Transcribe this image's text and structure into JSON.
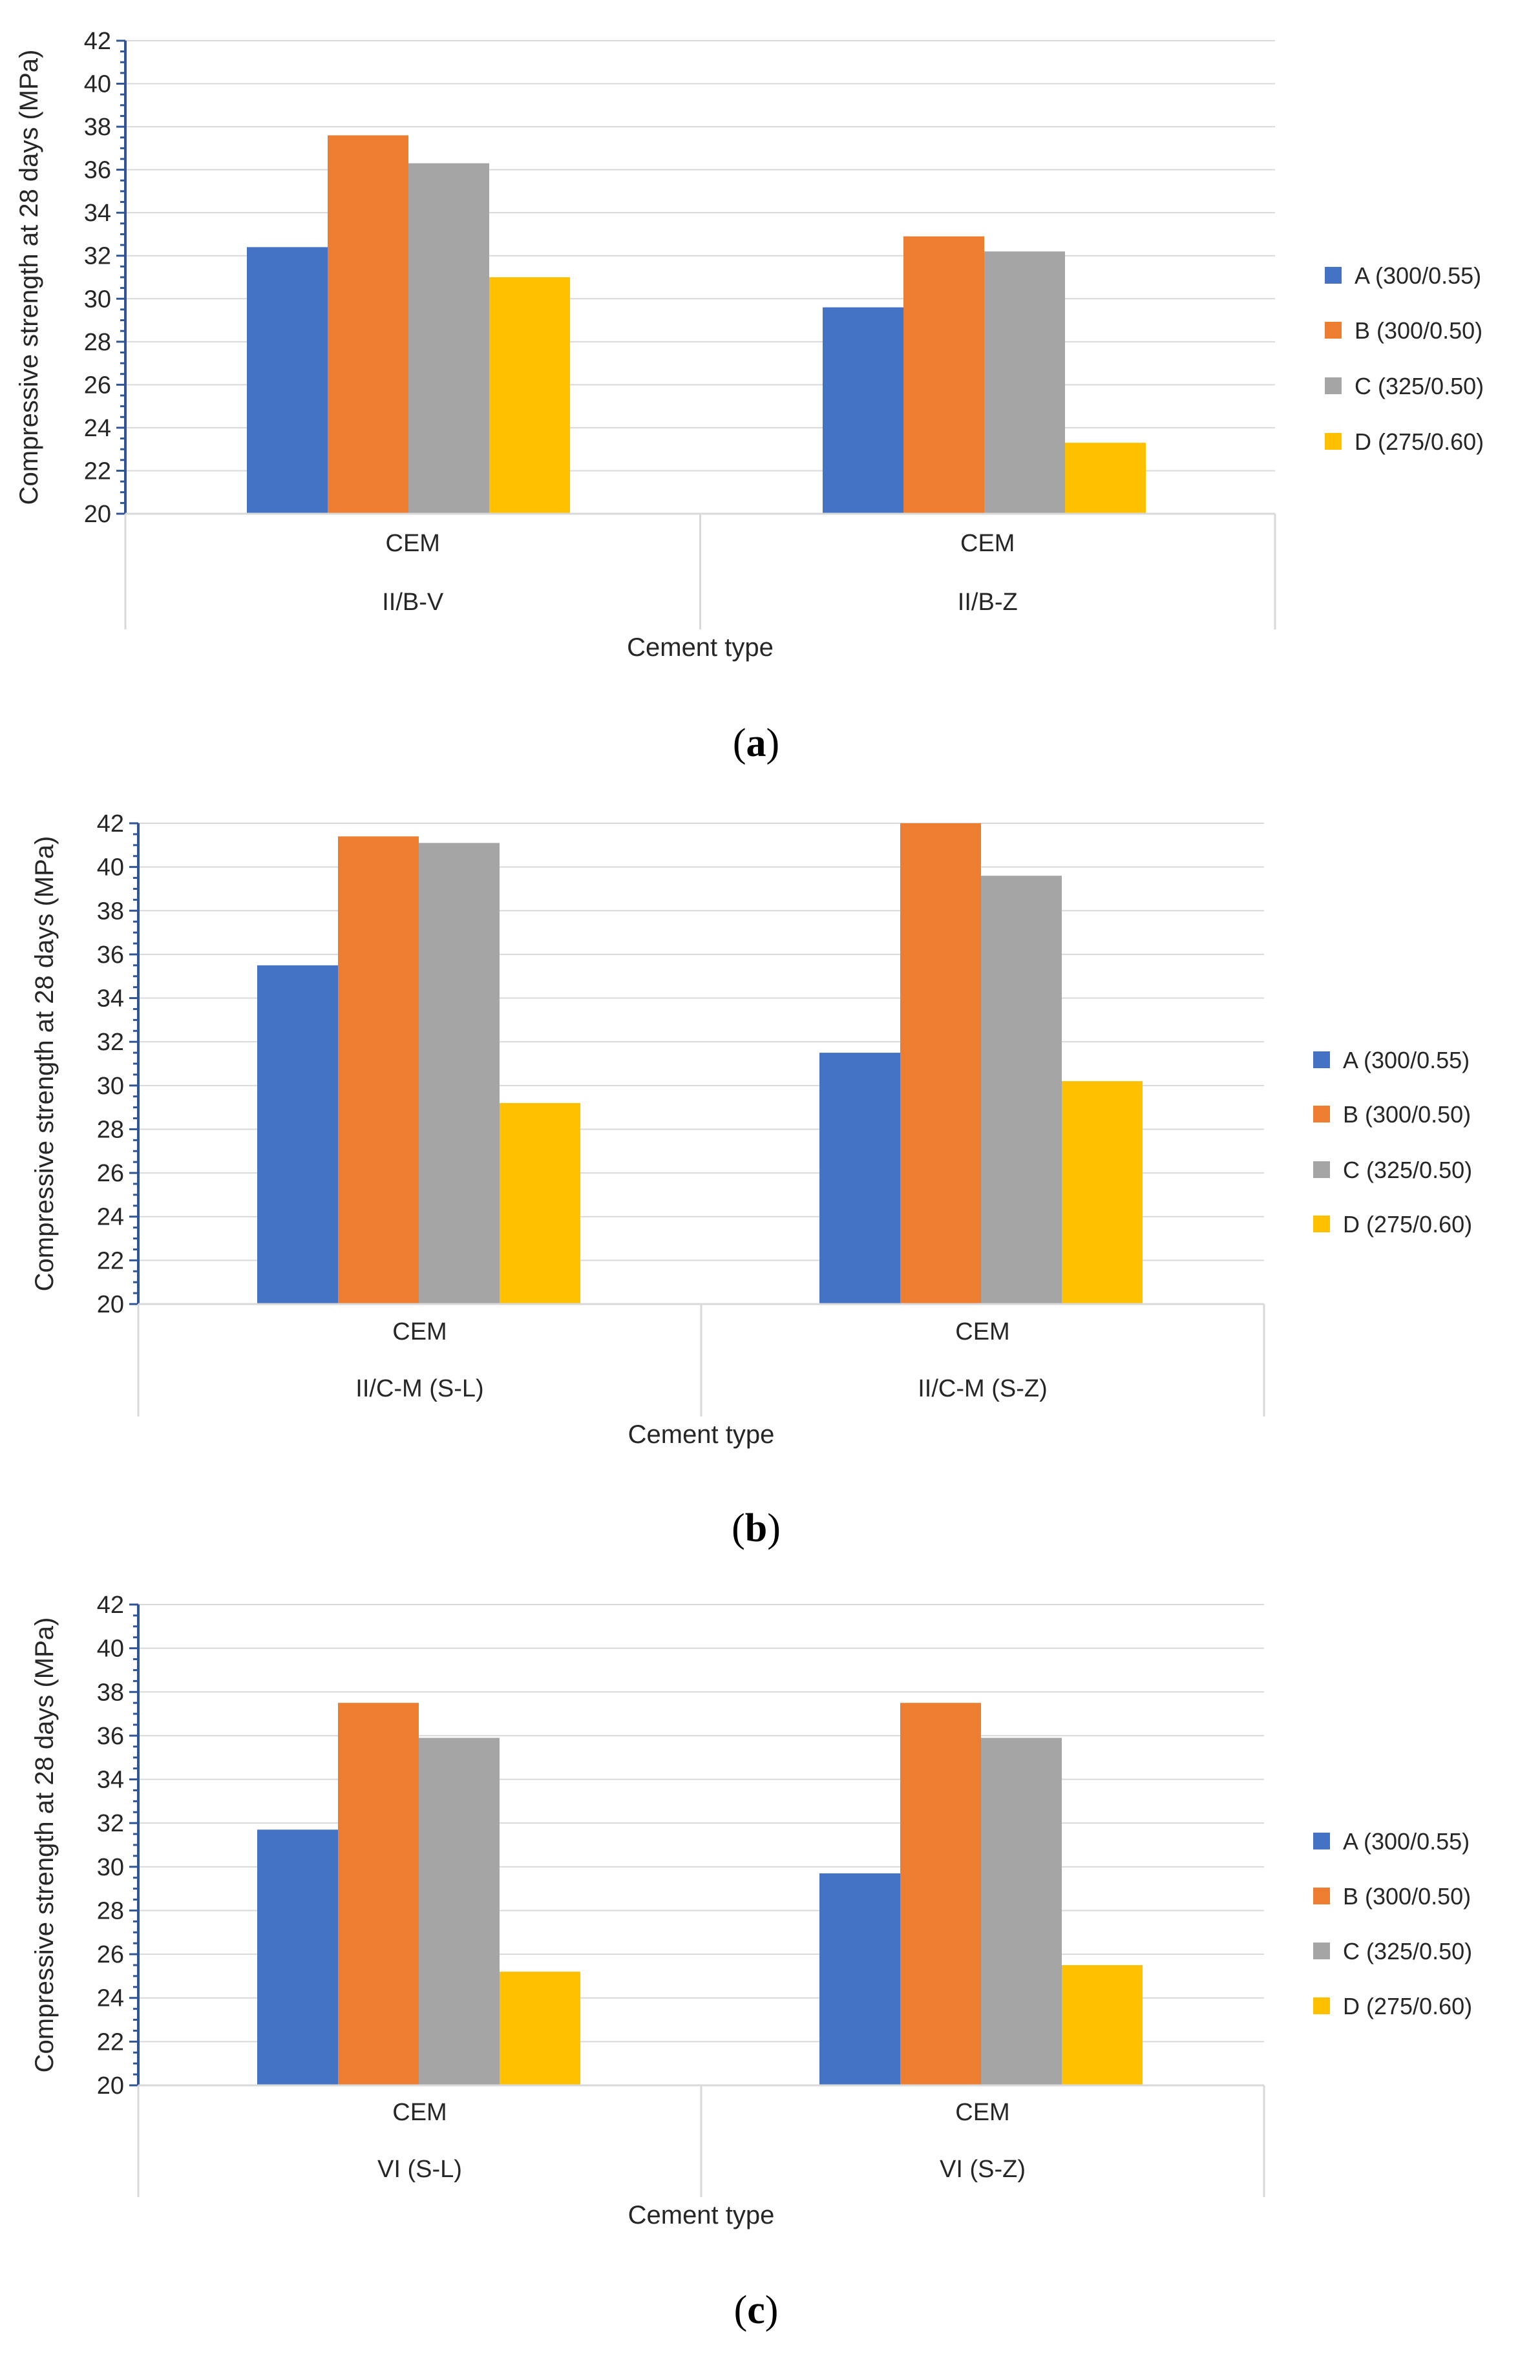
{
  "colors": {
    "A": "#4472C4",
    "B": "#ED7D31",
    "C": "#A5A5A5",
    "D": "#FFC000",
    "axis": "#2F5597",
    "grid": "#D9D9D9"
  },
  "chart_data": [
    {
      "type": "bar",
      "panel": {
        "open": "(",
        "letter": "a",
        "close": ")"
      },
      "ylabel": "Compressive strength at 28 days (MPa)",
      "xlabel": "Cement type",
      "ylim": [
        20,
        42
      ],
      "yticks": [
        "20",
        "22",
        "24",
        "26",
        "28",
        "30",
        "32",
        "34",
        "36",
        "38",
        "40",
        "42"
      ],
      "categories": [
        {
          "line1": "CEM",
          "line2": "II/B-V"
        },
        {
          "line1": "CEM",
          "line2": "II/B-Z"
        }
      ],
      "series": [
        {
          "key": "A",
          "name": "A (300/0.55)",
          "values": [
            32.4,
            29.6
          ]
        },
        {
          "key": "B",
          "name": "B (300/0.50)",
          "values": [
            37.6,
            32.9
          ]
        },
        {
          "key": "C",
          "name": "C (325/0.50)",
          "values": [
            36.3,
            32.2
          ]
        },
        {
          "key": "D",
          "name": "D (275/0.60)",
          "values": [
            31.0,
            23.3
          ]
        }
      ],
      "legend": "right",
      "grid": true
    },
    {
      "type": "bar",
      "panel": {
        "open": "(",
        "letter": "b",
        "close": ")"
      },
      "ylabel": "Compressive strength at 28 days (MPa)",
      "xlabel": "Cement type",
      "ylim": [
        20,
        42
      ],
      "yticks": [
        "20",
        "22",
        "24",
        "26",
        "28",
        "30",
        "32",
        "34",
        "36",
        "38",
        "40",
        "42"
      ],
      "categories": [
        {
          "line1": "CEM",
          "line2": "II/C-M (S-L)"
        },
        {
          "line1": "CEM",
          "line2": "II/C-M (S-Z)"
        }
      ],
      "series": [
        {
          "key": "A",
          "name": "A (300/0.55)",
          "values": [
            35.5,
            31.5
          ]
        },
        {
          "key": "B",
          "name": "B (300/0.50)",
          "values": [
            41.4,
            42.0
          ]
        },
        {
          "key": "C",
          "name": "C (325/0.50)",
          "values": [
            41.1,
            39.6
          ]
        },
        {
          "key": "D",
          "name": "D (275/0.60)",
          "values": [
            29.2,
            30.2
          ]
        }
      ],
      "legend": "right",
      "grid": true
    },
    {
      "type": "bar",
      "panel": {
        "open": "(",
        "letter": "c",
        "close": ")"
      },
      "ylabel": "Compressive strength at 28 days (MPa)",
      "xlabel": "Cement type",
      "ylim": [
        20,
        42
      ],
      "yticks": [
        "20",
        "22",
        "24",
        "26",
        "28",
        "30",
        "32",
        "34",
        "36",
        "38",
        "40",
        "42"
      ],
      "categories": [
        {
          "line1": "CEM",
          "line2": "VI (S-L)"
        },
        {
          "line1": "CEM",
          "line2": "VI (S-Z)"
        }
      ],
      "series": [
        {
          "key": "A",
          "name": "A (300/0.55)",
          "values": [
            31.7,
            29.7
          ]
        },
        {
          "key": "B",
          "name": "B (300/0.50)",
          "values": [
            37.5,
            37.5
          ]
        },
        {
          "key": "C",
          "name": "C (325/0.50)",
          "values": [
            35.9,
            35.9
          ]
        },
        {
          "key": "D",
          "name": "D (275/0.60)",
          "values": [
            25.2,
            25.5
          ]
        }
      ],
      "legend": "right",
      "grid": true
    }
  ]
}
